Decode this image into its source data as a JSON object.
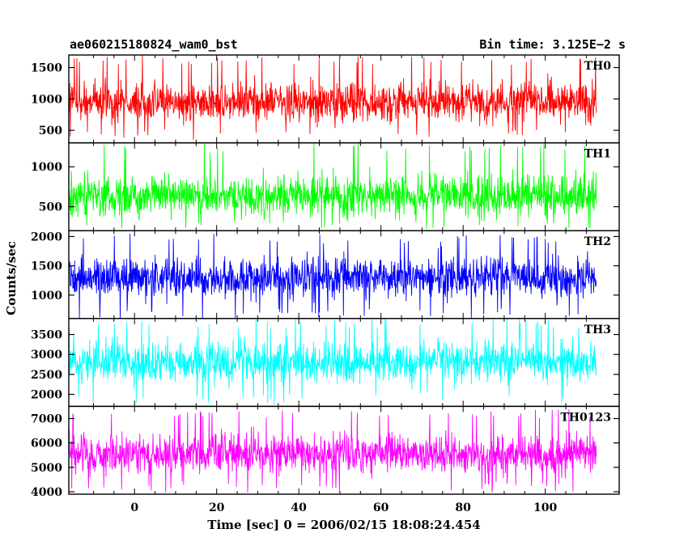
{
  "header": {
    "left_title": "ae060215180824_wam0_bst",
    "right_title": "Bin time: 3.125E−2 s"
  },
  "chart_data": {
    "type": "line",
    "title": "ae060215180824_wam0_bst",
    "subtitle": "Bin time: 3.125E−2 s",
    "xlabel": "Time [sec] 0 = 2006/02/15 18:08:24.454",
    "ylabel": "Counts/sec",
    "xlim": [
      -16,
      118
    ],
    "x_ticks": [
      0,
      20,
      40,
      60,
      80,
      100
    ],
    "x_tick_labels": [
      "0",
      "20",
      "40",
      "60",
      "80",
      "100"
    ],
    "data_x_range": [
      -15.9,
      112.5
    ],
    "bin_time_s": 0.03125,
    "grid": false,
    "legend": "none",
    "panels": [
      {
        "name": "TH0",
        "color": "#ff0000",
        "ylim": [
          300,
          1700
        ],
        "y_ticks": [
          500,
          1000,
          1500
        ],
        "mean": 950,
        "min": 330,
        "max": 1700
      },
      {
        "name": "TH1",
        "color": "#00ff00",
        "ylim": [
          200,
          1300
        ],
        "y_ticks": [
          500,
          1000
        ],
        "mean": 640,
        "min": 220,
        "max": 1300
      },
      {
        "name": "TH2",
        "color": "#0000ff",
        "ylim": [
          600,
          2100
        ],
        "y_ticks": [
          1000,
          1500,
          2000
        ],
        "mean": 1300,
        "min": 600,
        "max": 2050
      },
      {
        "name": "TH3",
        "color": "#00ffff",
        "ylim": [
          1700,
          3900
        ],
        "y_ticks": [
          2000,
          2500,
          3000,
          3500
        ],
        "mean": 2800,
        "min": 1750,
        "max": 3900
      },
      {
        "name": "TH0123",
        "color": "#ff00ff",
        "ylim": [
          3900,
          7500
        ],
        "y_ticks": [
          4000,
          5000,
          6000,
          7000
        ],
        "mean": 5550,
        "min": 3950,
        "max": 7400
      }
    ]
  }
}
